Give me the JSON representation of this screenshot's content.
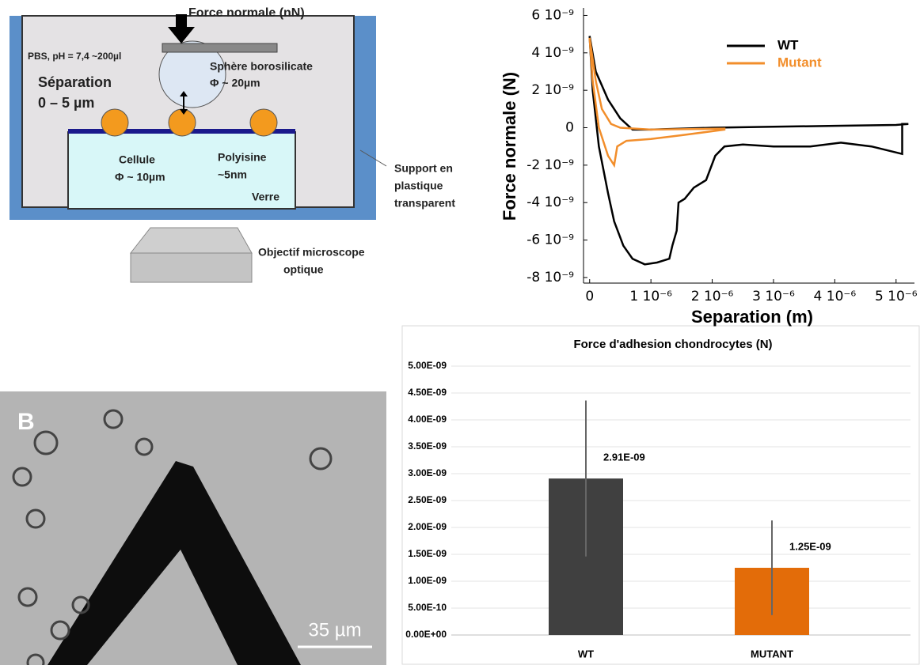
{
  "diagram": {
    "force": "Force normale (nN)",
    "medium": "PBS, pH = 7,4 ~200µl",
    "sphere": [
      "Sphère borosilicate",
      "Φ ~ 20µm"
    ],
    "separation": [
      "Séparation",
      "0 – 5 µm"
    ],
    "cell": [
      "Cellule",
      "Φ ~ 10µm"
    ],
    "coating": [
      "Polyisine",
      "~5nm"
    ],
    "glass": "Verre",
    "support": [
      "Support en",
      "plastique",
      "transparent"
    ],
    "objective": [
      "Objectif microscope",
      "optique"
    ]
  },
  "micrograph": {
    "panel_label": "B",
    "scale_bar": "35 µm"
  },
  "chart_data": [
    {
      "type": "line",
      "xlabel": "Separation (m)",
      "ylabel": "Force normale (N)",
      "legend": "upper right",
      "xlim": [
        -1e-07,
        5.3e-06
      ],
      "ylim": [
        -8.3e-09,
        6.4e-09
      ],
      "xticks": [
        0,
        {
          "value": 1e-06,
          "label": "1 10⁻⁶"
        },
        {
          "value": 2e-06,
          "label": "2 10⁻⁶"
        },
        {
          "value": 3e-06,
          "label": "3 10⁻⁶"
        },
        {
          "value": 4e-06,
          "label": "4 10⁻⁶"
        },
        {
          "value": 5e-06,
          "label": "5 10⁻⁶"
        }
      ],
      "yticks": [
        {
          "value": 6e-09,
          "label": "6 10⁻⁹"
        },
        {
          "value": 4e-09,
          "label": "4 10⁻⁹"
        },
        {
          "value": 2e-09,
          "label": "2 10⁻⁹"
        },
        0,
        {
          "value": -2e-09,
          "label": "-2 10⁻⁹"
        },
        {
          "value": -4e-09,
          "label": "-4 10⁻⁹"
        },
        {
          "value": -6e-09,
          "label": "-6 10⁻⁹"
        },
        {
          "value": -8e-09,
          "label": "-8 10⁻⁹"
        }
      ],
      "series": [
        {
          "name": "WT",
          "color": "#000000",
          "x": [
            0,
            1e-07,
            3e-07,
            5e-07,
            7e-07,
            1e-06,
            2e-06,
            3e-06,
            4e-06,
            5e-06,
            5.2e-06,
            5.1e-06,
            5.1e-06,
            4.6e-06,
            4.1e-06,
            3.6e-06,
            3e-06,
            2.5e-06,
            2.2e-06,
            2.05e-06,
            1.9e-06,
            1.7e-06,
            1.55e-06,
            1.45e-06,
            1.42e-06,
            1.35e-06,
            1.3e-06,
            1.1e-06,
            9e-07,
            7e-07,
            5.5e-07,
            4e-07,
            3e-07,
            1.5e-07,
            5e-08,
            0
          ],
          "values": [
            4.9e-09,
            3e-09,
            1.5e-09,
            5e-10,
            -1e-10,
            -1e-10,
            0,
            5e-11,
            1e-10,
            1.5e-10,
            2e-10,
            2e-10,
            -1.4e-09,
            -1e-09,
            -8e-10,
            -1e-09,
            -1e-09,
            -9e-10,
            -1e-09,
            -1.5e-09,
            -2.8e-09,
            -3.2e-09,
            -3.8e-09,
            -4e-09,
            -5.5e-09,
            -6.3e-09,
            -7e-09,
            -7.2e-09,
            -7.3e-09,
            -7e-09,
            -6.3e-09,
            -5e-09,
            -3.5e-09,
            -1e-09,
            2e-09,
            4.9e-09
          ]
        },
        {
          "name": "Mutant",
          "color": "#f28e2b",
          "x": [
            0,
            1e-07,
            2e-07,
            3.5e-07,
            5e-07,
            1e-06,
            2.2e-06,
            2.2e-06,
            1.5e-06,
            1e-06,
            6e-07,
            4.5e-07,
            4e-07,
            3e-07,
            1.5e-07,
            5e-08,
            0
          ],
          "values": [
            4.8e-09,
            2.5e-09,
            1e-09,
            2e-10,
            0,
            -1e-10,
            -5e-11,
            -1e-10,
            -4e-10,
            -6e-10,
            -7e-10,
            -1e-09,
            -2e-09,
            -1.5e-09,
            0,
            2.5e-09,
            4.8e-09
          ]
        }
      ]
    },
    {
      "type": "bar",
      "title": "Force d'adhesion chondrocytes (N)",
      "categories": [
        "WT",
        "MUTANT"
      ],
      "values": [
        2.91e-09,
        1.25e-09
      ],
      "value_labels": [
        "2.91E-09",
        "1.25E-09"
      ],
      "errors": [
        1.45e-09,
        8.8e-10
      ],
      "colors": [
        "#404040",
        "#e36c09"
      ],
      "grid": true,
      "ylim": [
        0,
        5e-09
      ],
      "yticks": [
        {
          "value": 0,
          "label": "0.00E+00"
        },
        {
          "value": 5e-10,
          "label": "5.00E-10"
        },
        {
          "value": 1e-09,
          "label": "1.00E-09"
        },
        {
          "value": 1.5e-09,
          "label": "1.50E-09"
        },
        {
          "value": 2e-09,
          "label": "2.00E-09"
        },
        {
          "value": 2.5e-09,
          "label": "2.50E-09"
        },
        {
          "value": 3e-09,
          "label": "3.00E-09"
        },
        {
          "value": 3.5e-09,
          "label": "3.50E-09"
        },
        {
          "value": 4e-09,
          "label": "4.00E-09"
        },
        {
          "value": 4.5e-09,
          "label": "4.50E-09"
        },
        {
          "value": 5e-09,
          "label": "5.00E-09"
        }
      ]
    }
  ]
}
